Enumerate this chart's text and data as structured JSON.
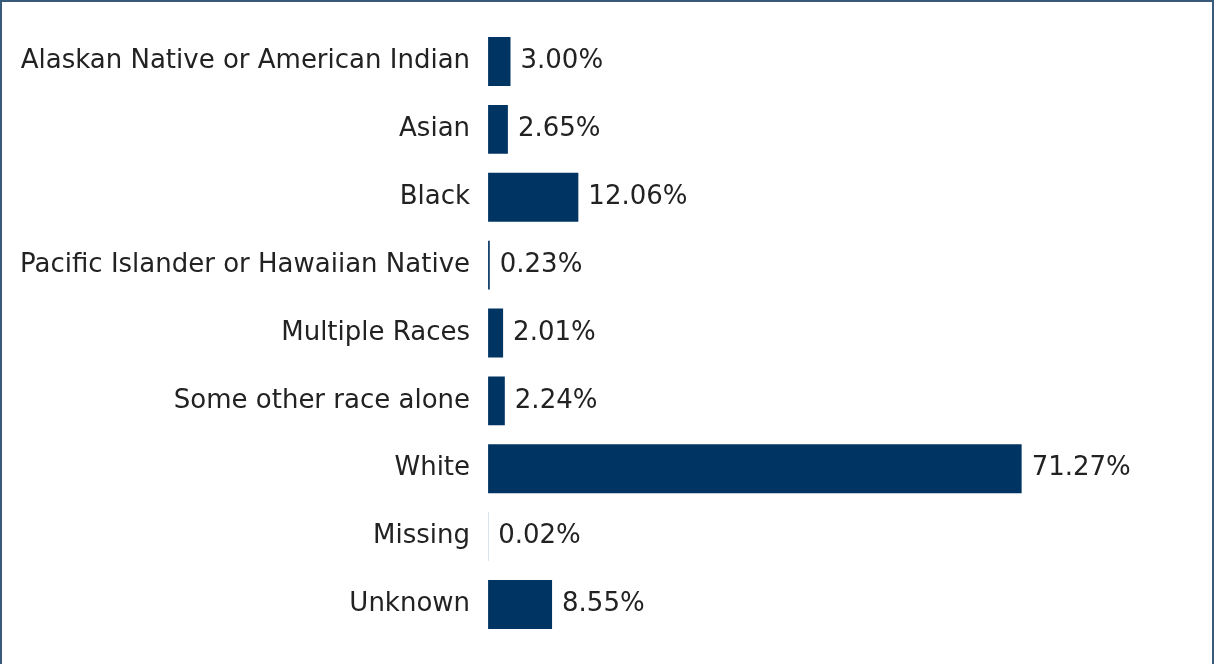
{
  "chart_data": {
    "type": "bar",
    "orientation": "horizontal",
    "categories": [
      "Alaskan Native or American Indian",
      "Asian",
      "Black",
      "Pacific Islander or Hawaiian Native",
      "Multiple Races",
      "Some other race alone",
      "White",
      "Missing",
      "Unknown"
    ],
    "values": [
      3.0,
      2.65,
      12.06,
      0.23,
      2.01,
      2.24,
      71.27,
      0.02,
      8.55
    ],
    "value_labels": [
      "3.00%",
      "2.65%",
      "12.06%",
      "0.23%",
      "2.01%",
      "2.24%",
      "71.27%",
      "0.02%",
      "8.55%"
    ],
    "color": "#003462",
    "grid": false,
    "legend": false,
    "tick_labels": "y"
  }
}
